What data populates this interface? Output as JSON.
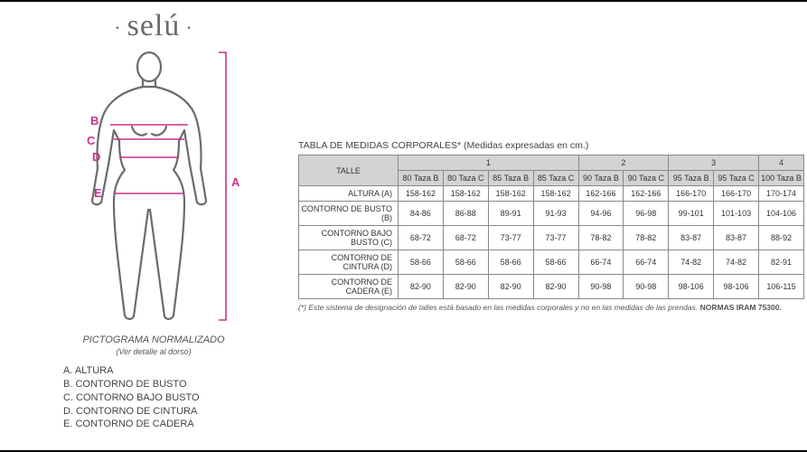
{
  "brand": "selú",
  "figure": {
    "stroke": "#6b6b6b",
    "accent": "#c9318a",
    "labels": {
      "A": "A",
      "B": "B",
      "C": "C",
      "D": "D",
      "E": "E"
    },
    "caption_line1": "PICTOGRAMA NORMALIZADO",
    "caption_line2": "(Ver detalle al dorso)"
  },
  "legend": {
    "A": "A. ALTURA",
    "B": "B. CONTORNO DE BUSTO",
    "C": "C. CONTORNO BAJO BUSTO",
    "D": "D. CONTORNO DE CINTURA",
    "E": "E. CONTORNO DE CADERA"
  },
  "table": {
    "title": "TABLA DE MEDIDAS CORPORALES* (Medidas expresadas en cm.)",
    "header_row1": {
      "talle": "TALLE",
      "groups": [
        "1",
        "2",
        "3",
        "4"
      ]
    },
    "header_row2": [
      "80 Taza B",
      "80 Taza C",
      "85 Taza B",
      "85 Taza C",
      "90 Taza B",
      "90 Taza C",
      "95 Taza B",
      "95 Taza C",
      "100 Taza B"
    ],
    "rows": [
      {
        "label": "ALTURA (A)",
        "cells": [
          "158-162",
          "158-162",
          "158-162",
          "158-162",
          "162-166",
          "162-166",
          "166-170",
          "166-170",
          "170-174"
        ]
      },
      {
        "label": "CONTORNO DE BUSTO (B)",
        "cells": [
          "84-86",
          "86-88",
          "89-91",
          "91-93",
          "94-96",
          "96-98",
          "99-101",
          "101-103",
          "104-106"
        ]
      },
      {
        "label": "CONTORNO BAJO BUSTO (C)",
        "cells": [
          "68-72",
          "68-72",
          "73-77",
          "73-77",
          "78-82",
          "78-82",
          "83-87",
          "83-87",
          "88-92"
        ]
      },
      {
        "label": "CONTORNO DE CINTURA (D)",
        "cells": [
          "58-66",
          "58-66",
          "58-66",
          "58-66",
          "66-74",
          "66-74",
          "74-82",
          "74-82",
          "82-91"
        ]
      },
      {
        "label": "CONTORNO DE CADERA (E)",
        "cells": [
          "82-90",
          "82-90",
          "82-90",
          "82-90",
          "90-98",
          "90-98",
          "98-106",
          "98-106",
          "106-115"
        ]
      }
    ],
    "footnote_pre": "(*) Este sistema de designación de talles está basado en las medidas corporales y no en las medidas de las prendas. ",
    "footnote_bold": "NORMAS IRAM 75300.",
    "colors": {
      "header_bg": "#d3d3d3",
      "border": "#888888",
      "text": "#333333"
    }
  }
}
